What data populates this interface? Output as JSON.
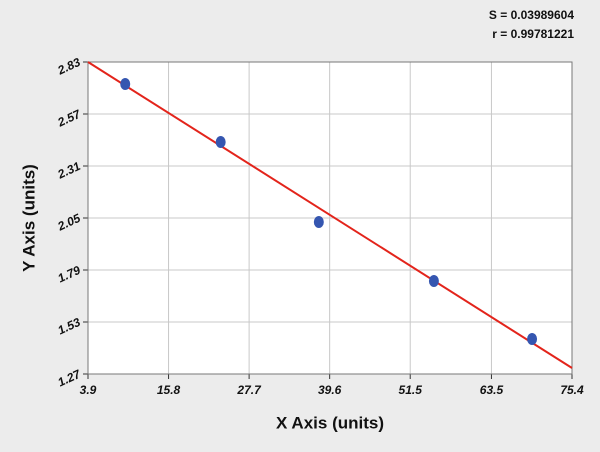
{
  "chart_data": {
    "type": "scatter",
    "annotations": [
      "S = 0.03989604",
      "r = 0.99781221"
    ],
    "xlabel": "X Axis (units)",
    "ylabel": "Y Axis (units)",
    "xlim": [
      3.9,
      75.4
    ],
    "ylim": [
      1.27,
      2.83
    ],
    "xticks": [
      3.9,
      15.8,
      27.7,
      39.6,
      51.5,
      63.5,
      75.4
    ],
    "yticks": [
      1.27,
      1.53,
      1.79,
      2.05,
      2.31,
      2.57,
      2.83
    ],
    "grid": true,
    "series": [
      {
        "type": "scatter",
        "color": "#3556b0",
        "x": [
          9.4,
          23.5,
          38.0,
          55.0,
          69.5
        ],
        "values": [
          2.72,
          2.43,
          2.03,
          1.735,
          1.445
        ]
      },
      {
        "type": "line",
        "color": "#e3241b",
        "x": [
          3.9,
          75.4
        ],
        "values": [
          2.83,
          1.3
        ]
      }
    ]
  }
}
